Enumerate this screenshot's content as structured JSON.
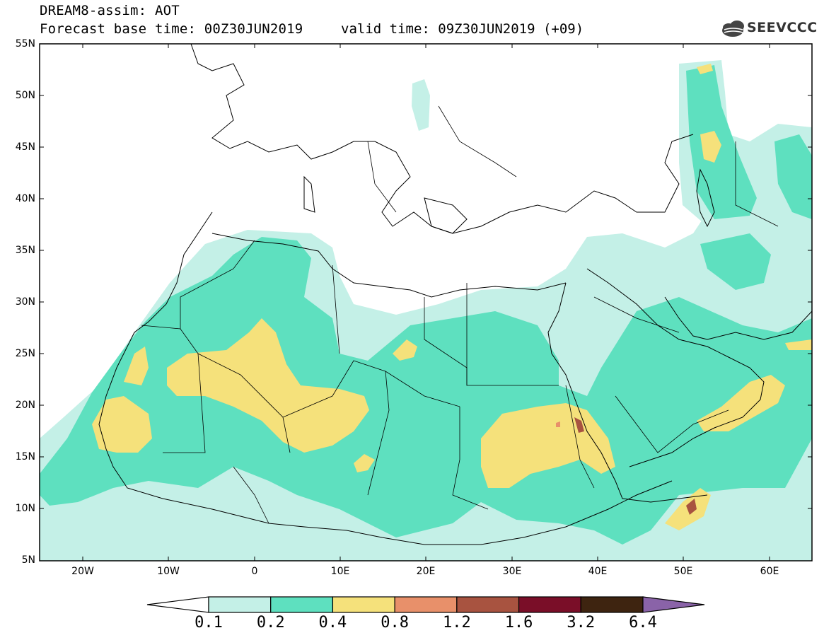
{
  "title": {
    "line1": "DREAM8-assim: AOT",
    "line2": "Forecast base time: 00Z30JUN2019",
    "valid": "valid time: 09Z30JUN2019 (+09)"
  },
  "logo": {
    "text": "SEEVCCC",
    "icon": "cloud-logo-icon"
  },
  "map": {
    "lat_labels": [
      "55N",
      "50N",
      "45N",
      "40N",
      "35N",
      "30N",
      "25N",
      "20N",
      "15N",
      "10N",
      "5N"
    ],
    "lon_labels": [
      "20W",
      "10W",
      "0",
      "10E",
      "20E",
      "30E",
      "40E",
      "50E",
      "60E"
    ]
  },
  "colorbar": {
    "colors": [
      "#ffffff",
      "#c4f0e7",
      "#5ee0bf",
      "#f5e17b",
      "#e8906a",
      "#a85340",
      "#7a0e28",
      "#3e2410",
      "#8a63a8"
    ],
    "labels": [
      "0.1",
      "0.2",
      "0.4",
      "0.8",
      "1.2",
      "1.6",
      "3.2",
      "6.4"
    ]
  }
}
